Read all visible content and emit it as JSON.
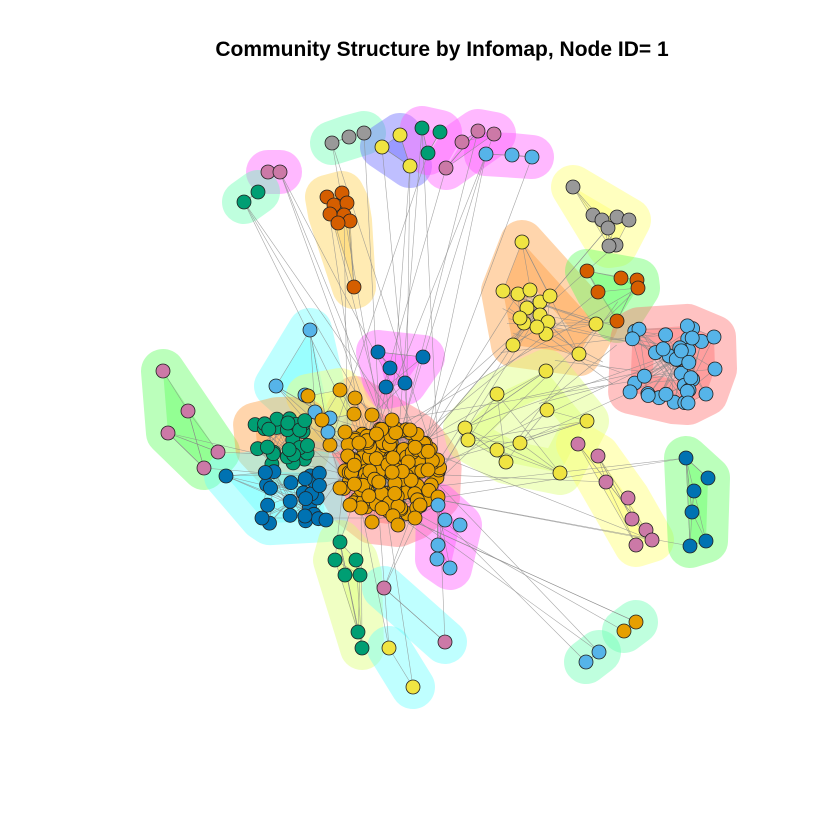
{
  "title": "Community Structure by Infomap, Node ID= 1",
  "palette": {
    "orange": "#E69F00",
    "sky": "#56B4E9",
    "green": "#009E73",
    "yellow": "#F0E442",
    "blue": "#0072B2",
    "vermilion": "#D55E00",
    "pink": "#CC79A7",
    "grey": "#999999",
    "edge": "#888888",
    "node_stroke": "#222222"
  },
  "hull_colors": [
    "#ff6e6e",
    "#5cff5c",
    "#ffff66",
    "#66ffff",
    "#ff9a3a",
    "#6666ff",
    "#ff55ff",
    "#66ffb0",
    "#dcff70",
    "#ffd04a"
  ]
}
